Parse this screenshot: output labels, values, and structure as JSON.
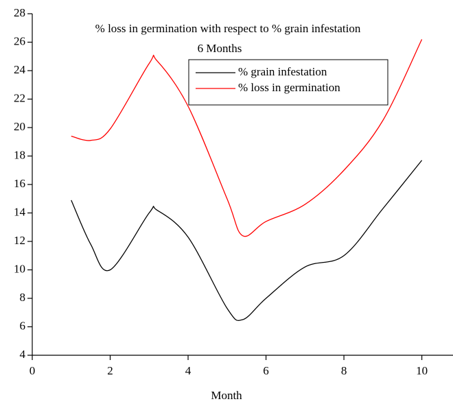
{
  "chart_data": {
    "type": "line",
    "title": "% loss in germination with respect to % grain infestation",
    "subtitle": "6 Months",
    "xlabel": "Month",
    "x": [
      1,
      1.5,
      2,
      3,
      3.2,
      4,
      5,
      5.4,
      6,
      7,
      8,
      9,
      10
    ],
    "series": [
      {
        "name": "% grain infestation",
        "color": "#000000",
        "values": [
          14.9,
          11.8,
          10.0,
          14.0,
          14.2,
          12.3,
          7.3,
          6.5,
          8.0,
          10.2,
          11.0,
          14.3,
          17.7
        ]
      },
      {
        "name": "% loss in germination",
        "color": "#ff0000",
        "values": [
          19.4,
          19.1,
          19.9,
          24.5,
          24.7,
          21.5,
          15.0,
          12.4,
          13.4,
          14.6,
          17.0,
          20.5,
          26.2
        ]
      }
    ],
    "xlim": [
      0,
      10.8
    ],
    "xticks": [
      0,
      2,
      4,
      6,
      8,
      10
    ],
    "ylim": [
      4,
      28
    ],
    "yticks": [
      4,
      6,
      8,
      10,
      12,
      14,
      16,
      18,
      20,
      22,
      24,
      26,
      28
    ],
    "legend": "top-right"
  }
}
